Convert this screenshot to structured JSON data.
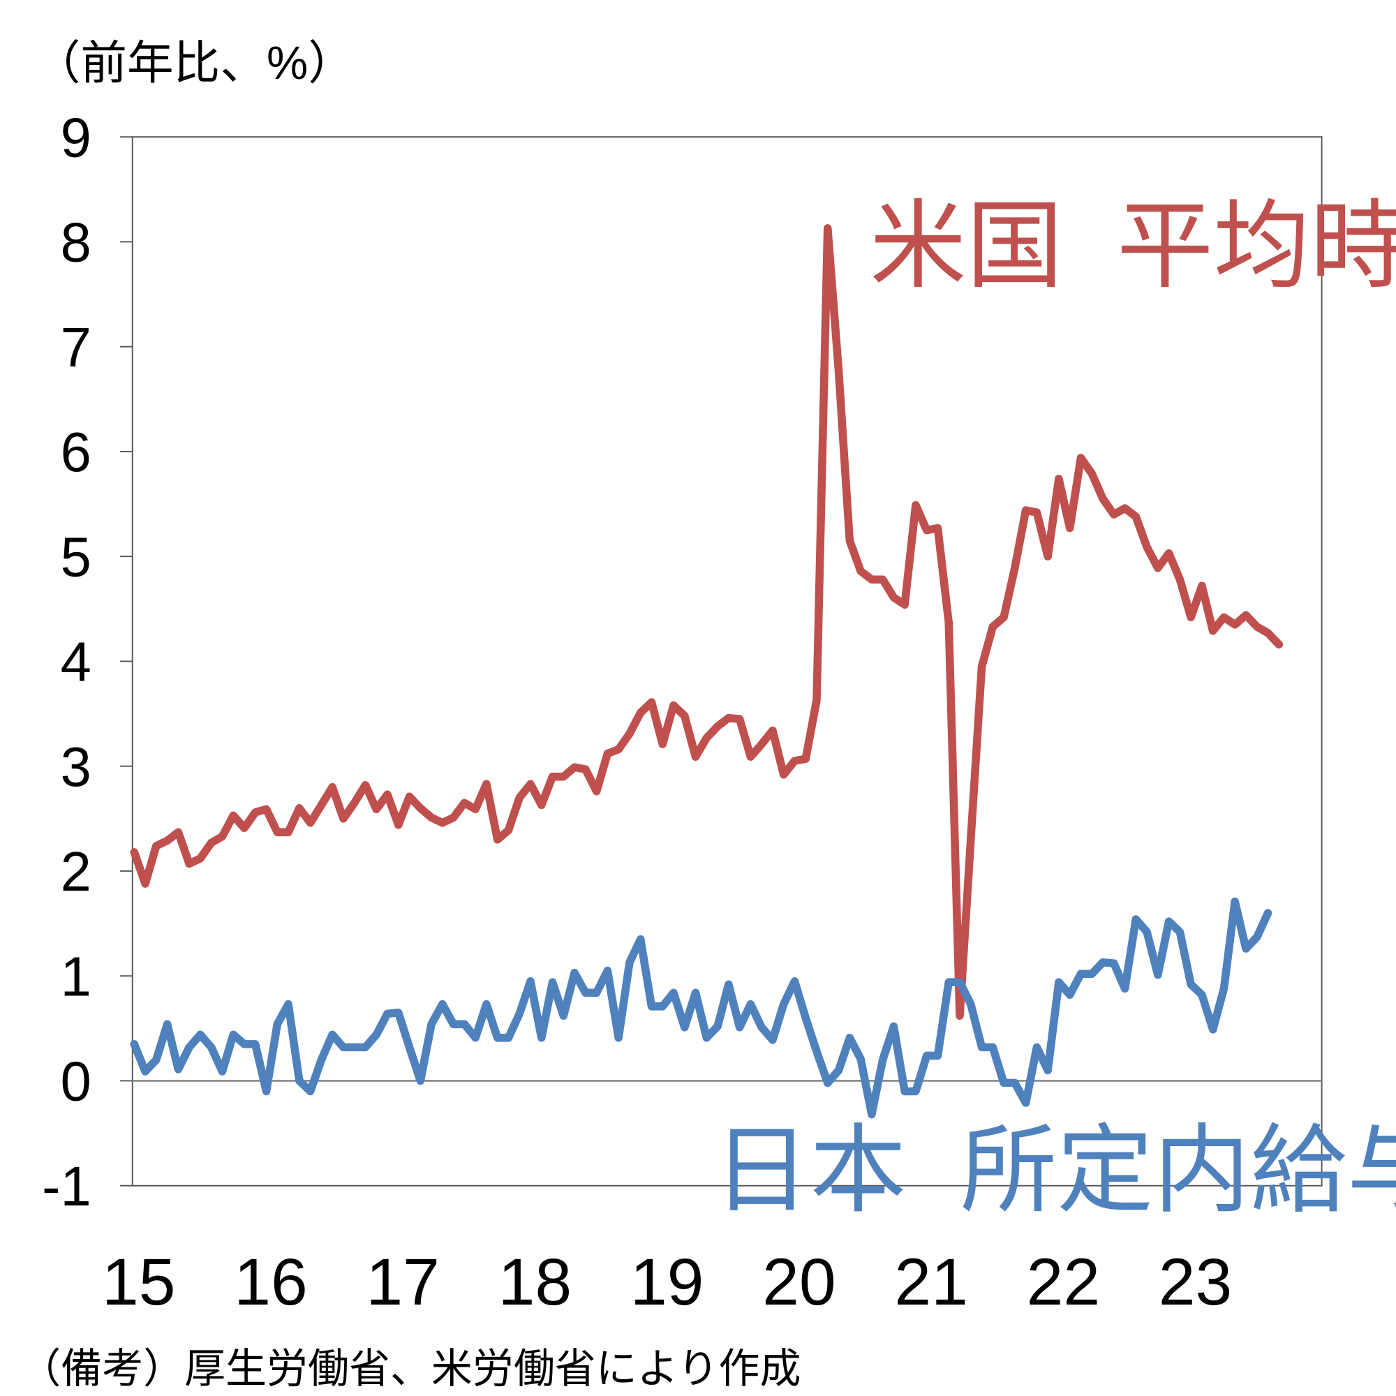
{
  "chart_data": {
    "type": "line",
    "unit_label": "（前年比、%）",
    "note": "（備考）厚生労働省、米労働省により作成",
    "frequency": "monthly",
    "start": "2015-01",
    "ylim": [
      -1,
      9
    ],
    "y_ticks": [
      "9",
      "8",
      "7",
      "6",
      "5",
      "4",
      "3",
      "2",
      "1",
      "0",
      "-1"
    ],
    "x_ticks": [
      "15",
      "16",
      "17",
      "18",
      "19",
      "20",
      "21",
      "22",
      "23"
    ],
    "grid": false,
    "zero_line": true,
    "series": [
      {
        "name": "米国  平均時給",
        "color": "#C0504D",
        "values": [
          2.18,
          1.88,
          2.24,
          2.29,
          2.37,
          2.07,
          2.12,
          2.27,
          2.33,
          2.53,
          2.41,
          2.56,
          2.59,
          2.37,
          2.37,
          2.6,
          2.46,
          2.63,
          2.8,
          2.5,
          2.65,
          2.82,
          2.59,
          2.73,
          2.44,
          2.71,
          2.6,
          2.51,
          2.46,
          2.51,
          2.65,
          2.59,
          2.83,
          2.3,
          2.39,
          2.7,
          2.83,
          2.63,
          2.9,
          2.9,
          2.99,
          2.97,
          2.76,
          3.12,
          3.16,
          3.31,
          3.51,
          3.61,
          3.21,
          3.58,
          3.48,
          3.09,
          3.27,
          3.38,
          3.46,
          3.45,
          3.09,
          3.21,
          3.34,
          2.92,
          3.05,
          3.07,
          3.63,
          8.13,
          6.77,
          5.15,
          4.86,
          4.78,
          4.78,
          4.61,
          4.54,
          5.49,
          5.25,
          5.27,
          4.37,
          0.62,
          2.3,
          3.95,
          4.33,
          4.42,
          4.89,
          5.44,
          5.42,
          5.0,
          5.74,
          5.27,
          5.94,
          5.79,
          5.55,
          5.4,
          5.46,
          5.38,
          5.09,
          4.89,
          5.03,
          4.78,
          4.42,
          4.72,
          4.29,
          4.42,
          4.35,
          4.44,
          4.33,
          4.27,
          4.16
        ]
      },
      {
        "name": "日本  所定内給与",
        "color": "#4F81BD",
        "values": [
          0.35,
          0.09,
          0.2,
          0.54,
          0.11,
          0.32,
          0.44,
          0.32,
          0.09,
          0.44,
          0.35,
          0.35,
          -0.1,
          0.54,
          0.73,
          0.0,
          -0.1,
          0.2,
          0.44,
          0.32,
          0.32,
          0.32,
          0.44,
          0.64,
          0.65,
          0.32,
          0.0,
          0.54,
          0.73,
          0.54,
          0.54,
          0.41,
          0.73,
          0.41,
          0.41,
          0.64,
          0.95,
          0.41,
          0.94,
          0.62,
          1.03,
          0.84,
          0.84,
          1.05,
          0.41,
          1.13,
          1.35,
          0.71,
          0.71,
          0.84,
          0.51,
          0.84,
          0.41,
          0.52,
          0.92,
          0.51,
          0.73,
          0.51,
          0.39,
          0.73,
          0.95,
          0.6,
          0.28,
          -0.02,
          0.1,
          0.41,
          0.21,
          -0.32,
          0.2,
          0.52,
          -0.1,
          -0.1,
          0.24,
          0.24,
          0.94,
          0.94,
          0.73,
          0.32,
          0.32,
          -0.02,
          -0.02,
          -0.21,
          0.32,
          0.1,
          0.94,
          0.82,
          1.02,
          1.02,
          1.13,
          1.12,
          0.88,
          1.54,
          1.42,
          1.01,
          1.52,
          1.42,
          0.92,
          0.82,
          0.49,
          0.88,
          1.71,
          1.26,
          1.37,
          1.6
        ]
      }
    ]
  }
}
